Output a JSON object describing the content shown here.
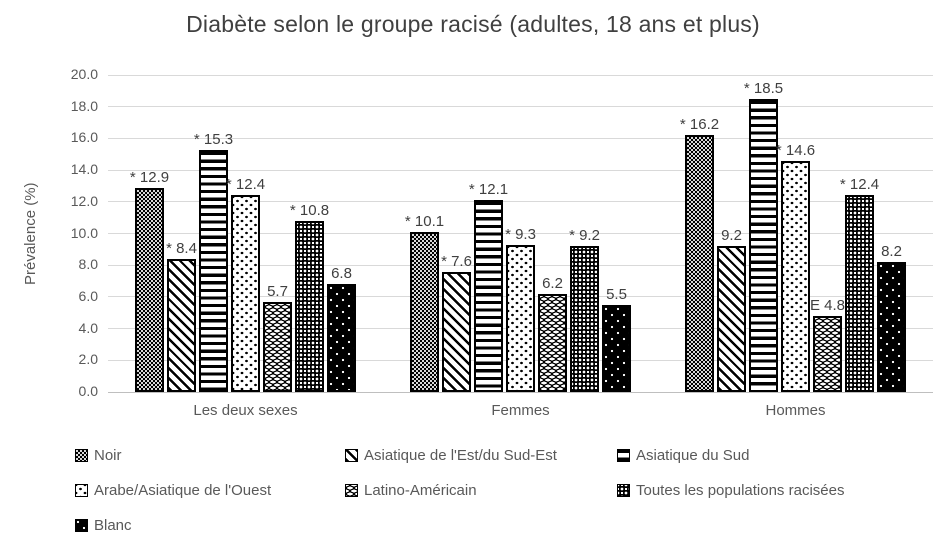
{
  "chart_data": {
    "type": "bar",
    "title": "Diabète selon le groupe racisé (adultes, 18 ans et plus)",
    "xlabel": "",
    "ylabel": "Prévalence (%)",
    "ylim": [
      0,
      20
    ],
    "ytick_step": 2,
    "yticks": [
      "20.0",
      "18.0",
      "16.0",
      "14.0",
      "12.0",
      "10.0",
      "8.0",
      "6.0",
      "4.0",
      "2.0",
      "0.0"
    ],
    "grid": true,
    "legend_position": "bottom",
    "categories": [
      "Les deux sexes",
      "Femmes",
      "Hommes"
    ],
    "series": [
      {
        "name": "Noir",
        "pattern": "checker",
        "values": [
          12.9,
          10.1,
          16.2
        ],
        "labels": [
          "* 12.9",
          "* 10.1",
          "* 16.2"
        ]
      },
      {
        "name": "Asiatique de l'Est/du Sud-Est",
        "pattern": "diag",
        "values": [
          8.4,
          7.6,
          9.2
        ],
        "labels": [
          "* 8.4",
          "* 7.6",
          "9.2"
        ]
      },
      {
        "name": "Asiatique du Sud",
        "pattern": "hlines",
        "values": [
          15.3,
          12.1,
          18.5
        ],
        "labels": [
          "* 15.3",
          "* 12.1",
          "* 18.5"
        ]
      },
      {
        "name": "Arabe/Asiatique de l'Ouest",
        "pattern": "dots",
        "values": [
          12.4,
          9.3,
          14.6
        ],
        "labels": [
          "* 12.4",
          "* 9.3",
          "* 14.6"
        ]
      },
      {
        "name": "Latino-Américain",
        "pattern": "weave",
        "values": [
          5.7,
          6.2,
          4.8
        ],
        "labels": [
          "5.7",
          "6.2",
          "E 4.8"
        ]
      },
      {
        "name": "Toutes les populations racisées",
        "pattern": "rings",
        "values": [
          10.8,
          9.2,
          12.4
        ],
        "labels": [
          "* 10.8",
          "* 9.2",
          "* 12.4"
        ]
      },
      {
        "name": "Blanc",
        "pattern": "blackdots",
        "values": [
          6.8,
          5.5,
          8.2
        ],
        "labels": [
          "6.8",
          "5.5",
          "8.2"
        ]
      }
    ]
  },
  "colors": {
    "title_text": "#404040",
    "axis_text": "#595959",
    "data_label_text": "#404040",
    "gridline": "#d9d9d9",
    "bar_outline": "#000000",
    "background": "#ffffff"
  }
}
